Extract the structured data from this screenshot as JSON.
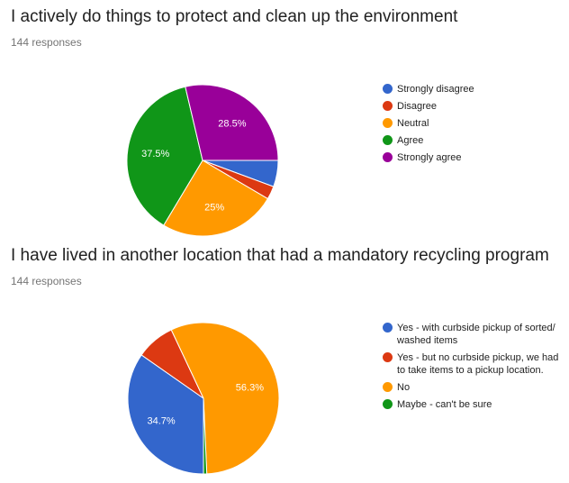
{
  "chart_data": [
    {
      "type": "pie",
      "title": "I actively do things to protect and clean up the environment",
      "subtitle": "144 responses",
      "legend_position": "right",
      "slices": [
        {
          "label": "Strongly disagree",
          "value": 5.6,
          "color": "#3366cc",
          "data_label": ""
        },
        {
          "label": "Disagree",
          "value": 2.8,
          "color": "#dc3912",
          "data_label": ""
        },
        {
          "label": "Neutral",
          "value": 25,
          "color": "#ff9900",
          "data_label": "25%"
        },
        {
          "label": "Agree",
          "value": 37.5,
          "color": "#109618",
          "data_label": "37.5%"
        },
        {
          "label": "Strongly agree",
          "value": 28.5,
          "color": "#990099",
          "data_label": "28.5%"
        }
      ]
    },
    {
      "type": "pie",
      "title": "I have lived in another location that had a mandatory recycling program",
      "subtitle": "144 responses",
      "legend_position": "right",
      "slices": [
        {
          "label": "Yes - with curbside pickup of sorted/ washed items",
          "value": 34.7,
          "color": "#3366cc",
          "data_label": "34.7%"
        },
        {
          "label": "Yes - but no curbside pickup, we had to take items to a pickup location.",
          "value": 8.3,
          "color": "#dc3912",
          "data_label": ""
        },
        {
          "label": "No",
          "value": 56.3,
          "color": "#ff9900",
          "data_label": "56.3%"
        },
        {
          "label": "Maybe - can't be sure",
          "value": 0.7,
          "color": "#109618",
          "data_label": ""
        }
      ]
    }
  ]
}
